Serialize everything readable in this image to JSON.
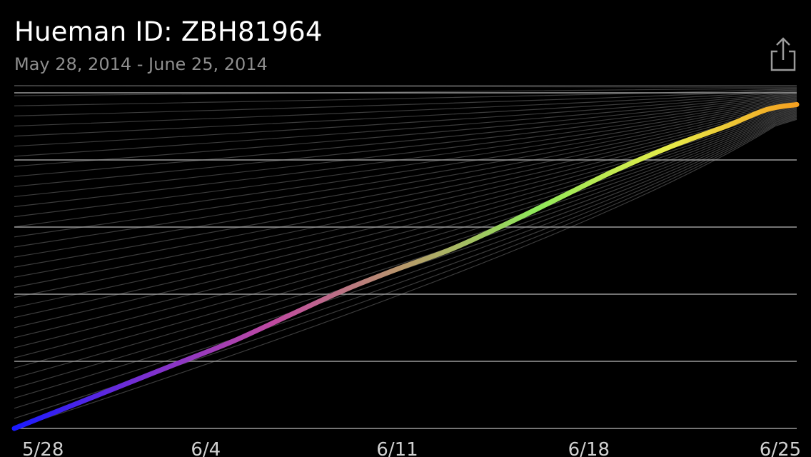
{
  "header": {
    "title": "Hueman ID: ZBH81964",
    "subtitle": "May 28, 2014 - June 25, 2014"
  },
  "toolbar": {
    "share_icon": "share-icon"
  },
  "colors": {
    "background": "#000000",
    "gridline": "#9a9a9a",
    "fan_line": "#3c3c3c",
    "gradient": [
      "#1a1aff",
      "#7a2fd0",
      "#c04aa0",
      "#b79a6a",
      "#8fe85a",
      "#e6ec4a",
      "#f5a020"
    ]
  },
  "chart_data": {
    "type": "line",
    "x_tick_labels": [
      "5/28",
      "6/4",
      "6/11",
      "6/18",
      "6/25"
    ],
    "x_tick_days": [
      0,
      7,
      14,
      21,
      28
    ],
    "xlim": [
      0,
      28.6
    ],
    "ylim": [
      0,
      1
    ],
    "grid": true,
    "series": [
      {
        "x": [
          0,
          2,
          4,
          6,
          8,
          10,
          12,
          14,
          16,
          18,
          20,
          22,
          24,
          26,
          27.5,
          28.6
        ],
        "y": [
          0,
          0.065,
          0.13,
          0.195,
          0.26,
          0.335,
          0.41,
          0.475,
          0.535,
          0.61,
          0.69,
          0.77,
          0.84,
          0.9,
          0.95,
          0.965
        ],
        "colors": [
          "#1a1aff",
          "#7a2fd0",
          "#c04aa0",
          "#b79a6a",
          "#8fe85a",
          "#e6ec4a",
          "#f5a020"
        ]
      }
    ]
  }
}
